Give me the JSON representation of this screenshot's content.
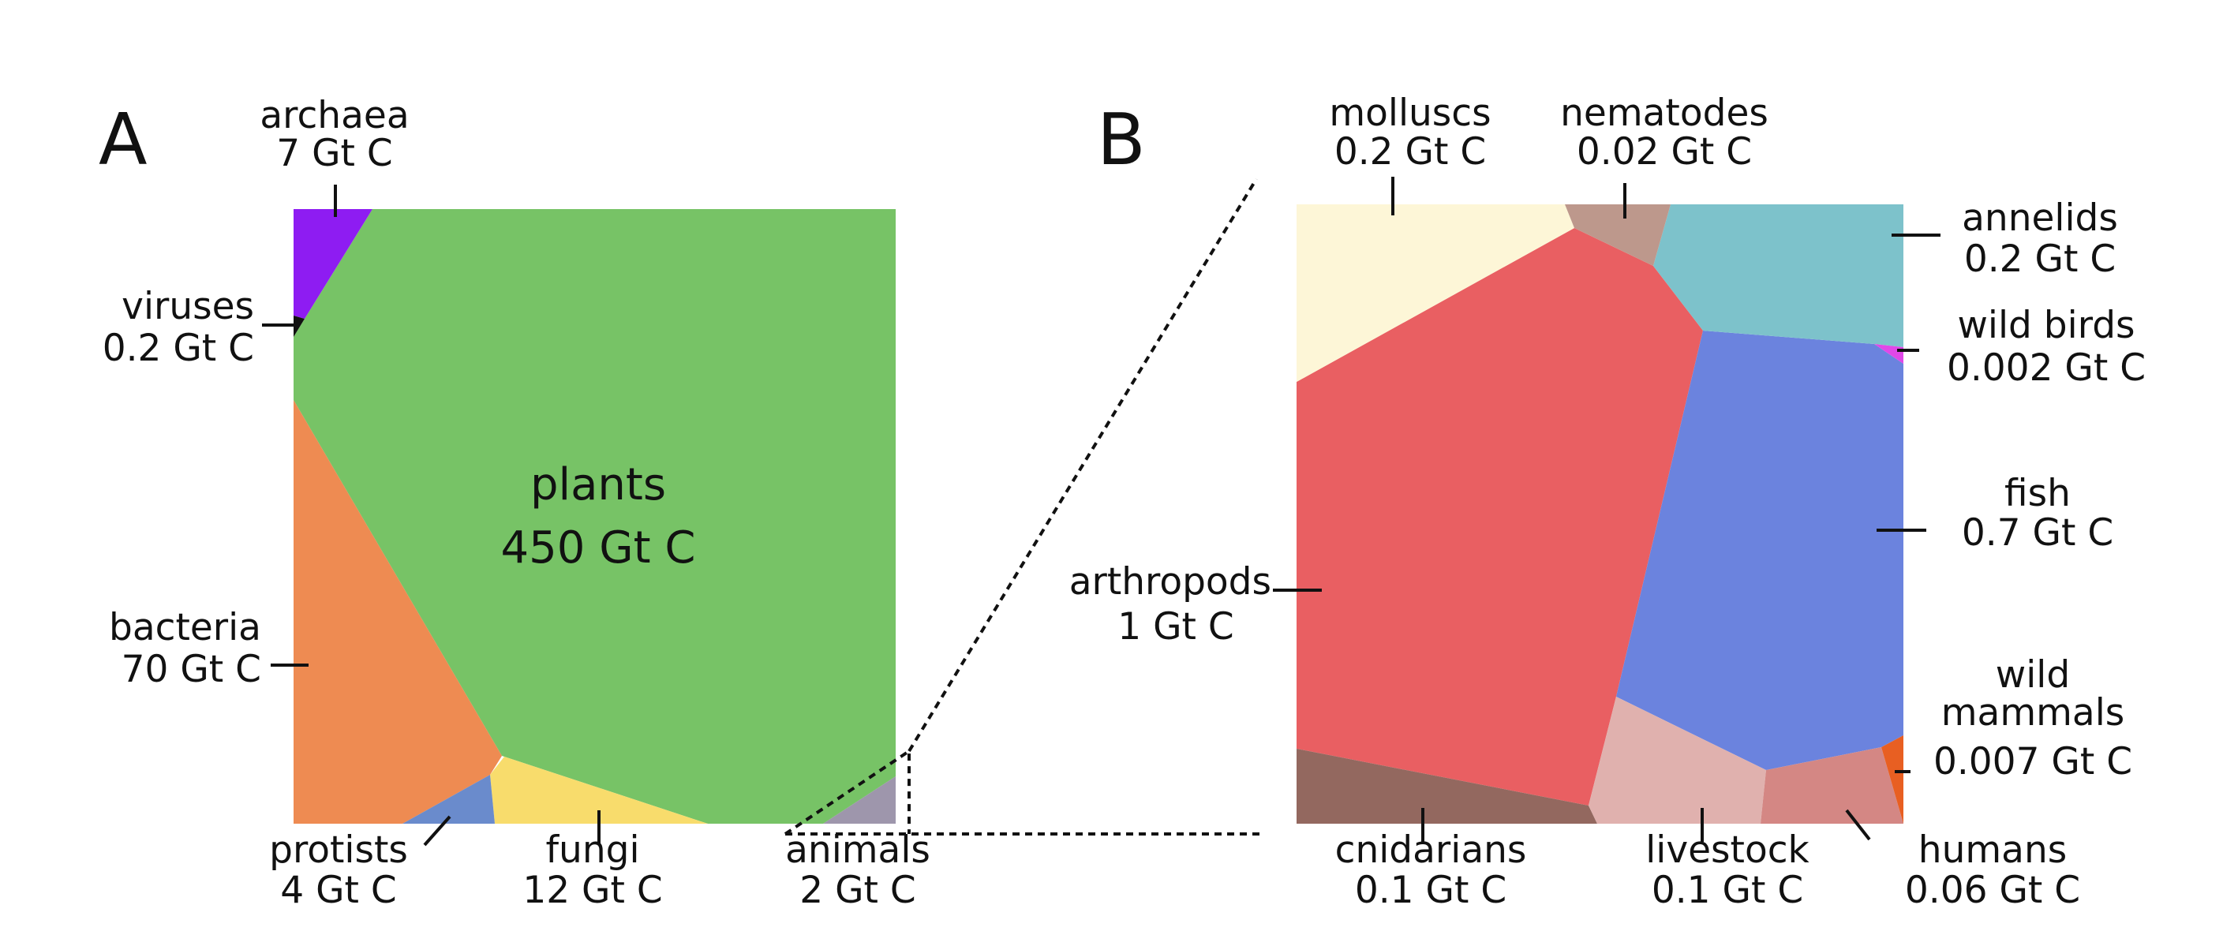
{
  "chart_data": {
    "type": "voronoi-treemap",
    "units": "Gt C",
    "panels": [
      {
        "id": "A",
        "label": "A",
        "cells": [
          {
            "key": "plants",
            "name": "plants",
            "value_label": "450 Gt C",
            "value": 450,
            "color": "#77c366"
          },
          {
            "key": "bacteria",
            "name": "bacteria",
            "value_label": "70 Gt C",
            "value": 70,
            "color": "#ee8b52"
          },
          {
            "key": "fungi",
            "name": "fungi",
            "value_label": "12 Gt C",
            "value": 12,
            "color": "#f8dc6c"
          },
          {
            "key": "archaea",
            "name": "archaea",
            "value_label": "7 Gt C",
            "value": 7,
            "color": "#8e1cf2"
          },
          {
            "key": "protists",
            "name": "protists",
            "value_label": "4 Gt C",
            "value": 4,
            "color": "#6a8bcc"
          },
          {
            "key": "animals",
            "name": "animals",
            "value_label": "2 Gt C",
            "value": 2,
            "color": "#9e96ac"
          },
          {
            "key": "viruses",
            "name": "viruses",
            "value_label": "0.2 Gt C",
            "value": 0.2,
            "color": "#111111"
          }
        ]
      },
      {
        "id": "B",
        "label": "B",
        "cells": [
          {
            "key": "arthropods",
            "name": "arthropods",
            "value_label": "1 Gt C",
            "value": 1,
            "color": "#e95f62"
          },
          {
            "key": "fish",
            "name": "fish",
            "value_label": "0.7 Gt C",
            "value": 0.7,
            "color": "#6b83de"
          },
          {
            "key": "molluscs",
            "name": "molluscs",
            "value_label": "0.2 Gt C",
            "value": 0.2,
            "color": "#fdf6d7"
          },
          {
            "key": "annelids",
            "name": "annelids",
            "value_label": "0.2 Gt C",
            "value": 0.2,
            "color": "#7dc2cb"
          },
          {
            "key": "cnidarians",
            "name": "cnidarians",
            "value_label": "0.1 Gt C",
            "value": 0.1,
            "color": "#93685f"
          },
          {
            "key": "livestock",
            "name": "livestock",
            "value_label": "0.1 Gt C",
            "value": 0.1,
            "color": "#e0b1ae"
          },
          {
            "key": "humans",
            "name": "humans",
            "value_label": "0.06 Gt C",
            "value": 0.06,
            "color": "#d48784"
          },
          {
            "key": "nematodes",
            "name": "nematodes",
            "value_label": "0.02 Gt C",
            "value": 0.02,
            "color": "#bd988c"
          },
          {
            "key": "wild_mammals",
            "name": "wild mammals",
            "name_lines": [
              "wild",
              "mammals"
            ],
            "value_label": "0.007 Gt C",
            "value": 0.007,
            "color": "#e85f22"
          },
          {
            "key": "wild_birds",
            "name": "wild birds",
            "value_label": "0.002 Gt C",
            "value": 0.002,
            "color": "#e048e8"
          }
        ]
      }
    ]
  }
}
